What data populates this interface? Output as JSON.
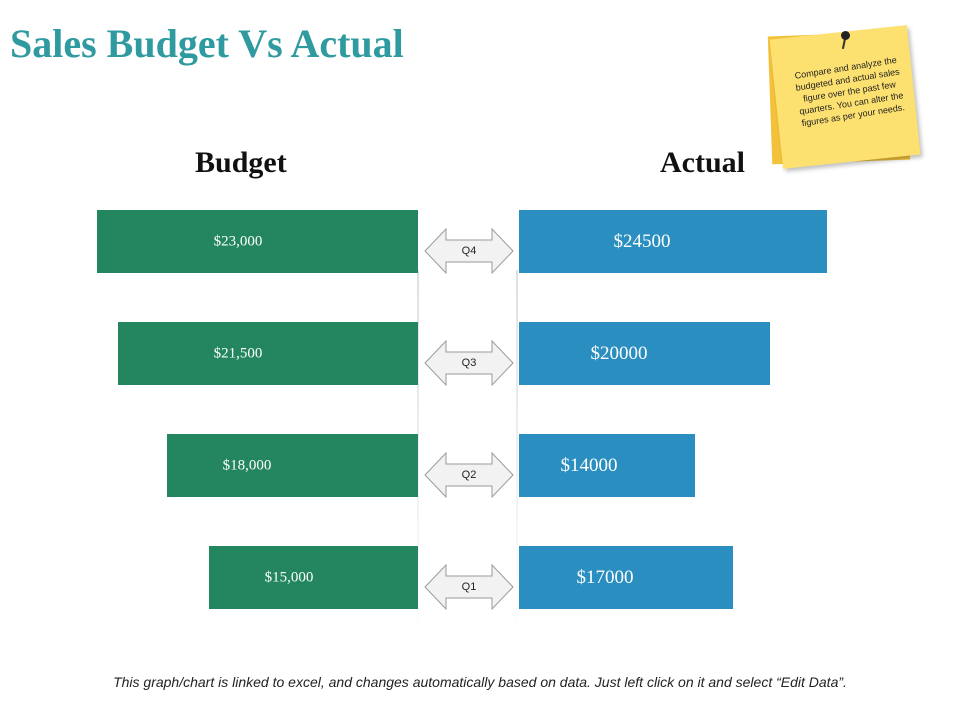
{
  "title": "Sales Budget Vs Actual",
  "note": {
    "text": "Compare and analyze the budgeted and actual sales figure over the past few quarters. You can alter the figures as per your needs."
  },
  "footer": "This graph/chart is linked to excel, and changes automatically based on data. Just left click on it and select “Edit Data”.",
  "colors": {
    "title": "#2f9a9f",
    "budget": "#24865f",
    "actual": "#2a8fc0",
    "note": "#fde170"
  },
  "chart_data": {
    "type": "bar",
    "orientation": "horizontal-butterfly",
    "categories": [
      "Q4",
      "Q3",
      "Q2",
      "Q1"
    ],
    "series": [
      {
        "name": "Budget",
        "values": [
          23000,
          21500,
          18000,
          15000
        ],
        "labels": [
          "$23,000",
          "$21,500",
          "$18,000",
          "$15,000"
        ]
      },
      {
        "name": "Actual",
        "values": [
          24500,
          20000,
          14000,
          17000
        ],
        "labels": [
          "$24500",
          "$20000",
          "$14000",
          "$17000"
        ]
      }
    ],
    "xlim": [
      0,
      26000
    ],
    "grid": false,
    "legend": "none"
  }
}
